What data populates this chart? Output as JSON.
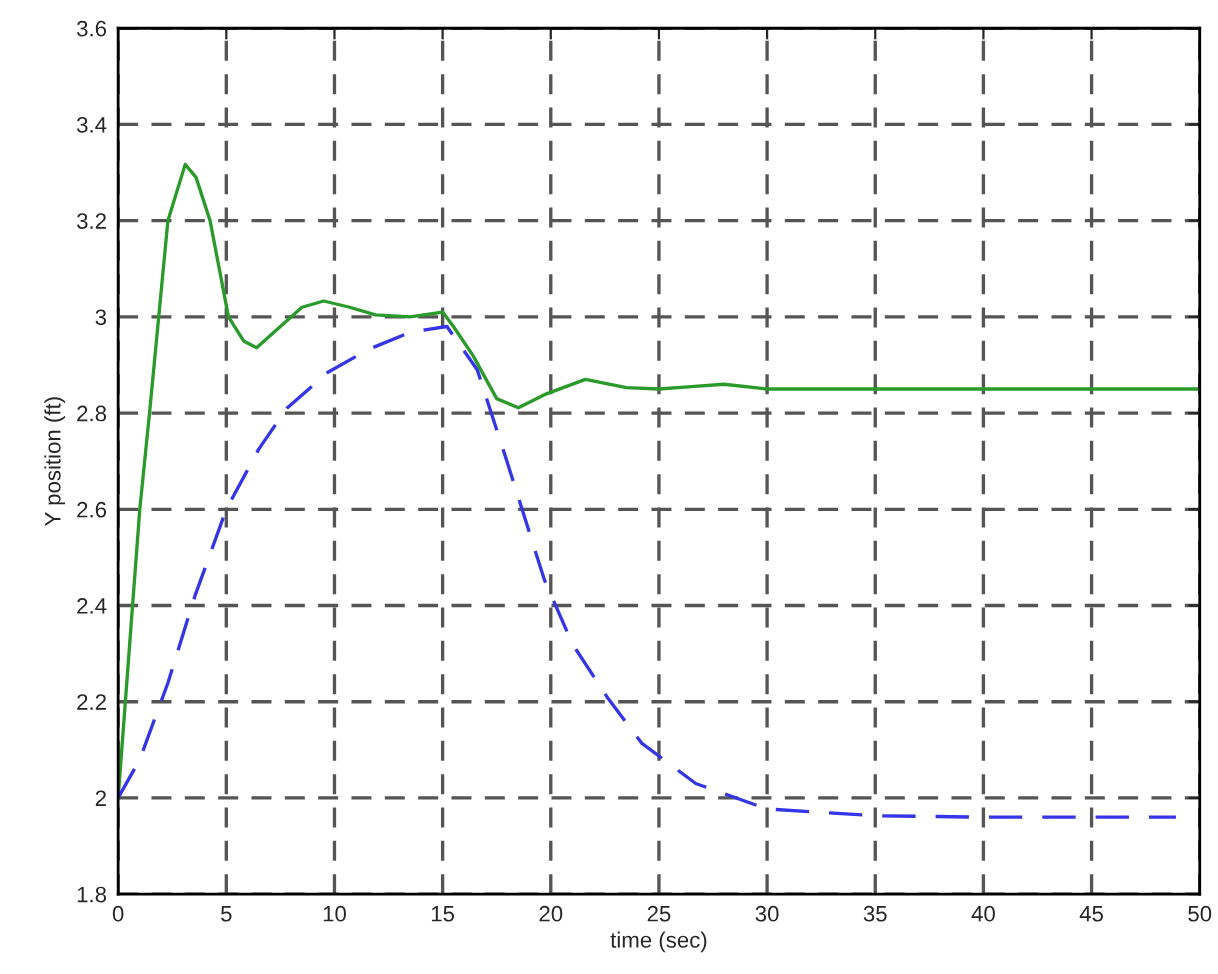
{
  "chart_data": {
    "type": "line",
    "xlabel": "time (sec)",
    "ylabel": "Y position (ft)",
    "xlim": [
      0,
      50
    ],
    "ylim": [
      1.8,
      3.6
    ],
    "xticks": [
      0,
      5,
      10,
      15,
      20,
      25,
      30,
      35,
      40,
      45,
      50
    ],
    "yticks": [
      1.8,
      2,
      2.2,
      2.4,
      2.6,
      2.8,
      3,
      3.2,
      3.4,
      3.6
    ],
    "grid": true,
    "series": [
      {
        "color": "#2a9a2a",
        "line_style": "solid",
        "x": [
          0,
          0.5,
          1,
          1.45,
          2.3,
          3.1,
          3.6,
          4.25,
          5.1,
          5.8,
          6.4,
          7.5,
          8.5,
          9.5,
          10.7,
          11.9,
          13.5,
          15,
          15.5,
          16.4,
          17.5,
          18.5,
          19.8,
          21.6,
          23.5,
          25,
          26.5,
          28,
          30,
          35,
          40,
          45,
          50
        ],
        "values": [
          2,
          2.3,
          2.6,
          2.8,
          3.2,
          3.317,
          3.29,
          3.2,
          3,
          2.95,
          2.936,
          2.98,
          3.02,
          3.033,
          3.02,
          3.004,
          3.0,
          3.01,
          2.98,
          2.92,
          2.83,
          2.811,
          2.84,
          2.87,
          2.853,
          2.85,
          2.855,
          2.86,
          2.85,
          2.85,
          2.85,
          2.85,
          2.85
        ]
      },
      {
        "color": "#3535e8",
        "line_style": "dashed",
        "x": [
          0,
          1,
          2.3,
          3.55,
          5,
          6.5,
          7.8,
          9.7,
          11.6,
          13.5,
          15.2,
          16.6,
          17.9,
          19.7,
          21,
          22.6,
          24.2,
          26.7,
          30,
          35,
          40,
          45,
          48.9
        ],
        "values": [
          2,
          2.08,
          2.239,
          2.42,
          2.6,
          2.725,
          2.81,
          2.885,
          2.933,
          2.968,
          2.98,
          2.89,
          2.71,
          2.454,
          2.32,
          2.21,
          2.114,
          2.03,
          1.977,
          1.963,
          1.96,
          1.96,
          1.96
        ]
      }
    ]
  }
}
